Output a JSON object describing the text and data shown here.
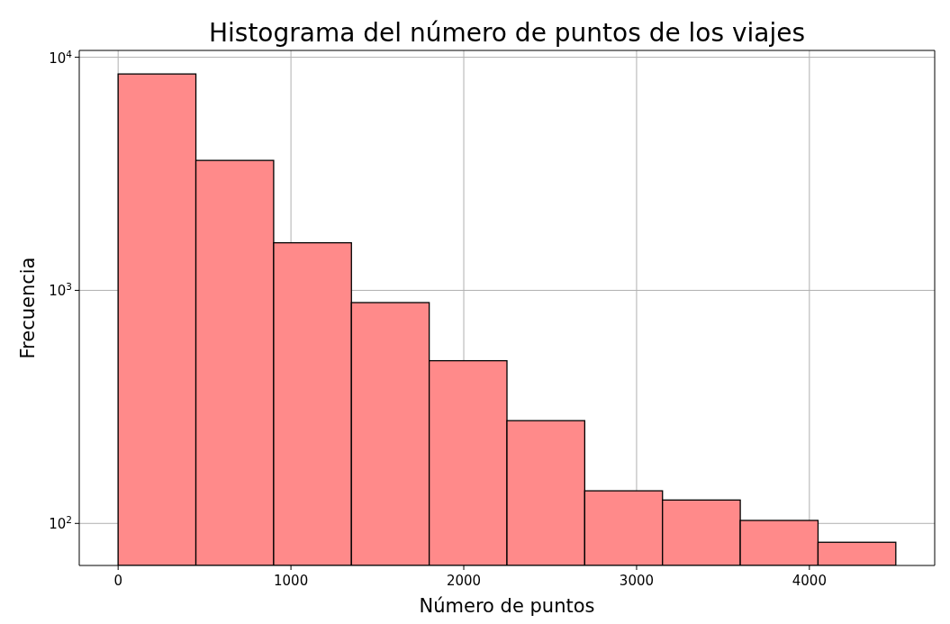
{
  "chart_data": {
    "type": "histogram",
    "title": "Histograma del número de puntos de los viajes",
    "xlabel": "Número de puntos",
    "ylabel": "Frecuencia",
    "bins": [
      0,
      450,
      900,
      1350,
      1800,
      2250,
      2700,
      3150,
      3600,
      4050,
      4500
    ],
    "values": [
      8480,
      3610,
      1600,
      886,
      499,
      276,
      138,
      126,
      103,
      83
    ],
    "color": "#ff8a8a",
    "log": "y",
    "grid": true,
    "xlim": [
      -225,
      4725
    ],
    "xticks": [
      0,
      1000,
      2000,
      3000,
      4000
    ],
    "ylim": [
      66,
      10700
    ],
    "yticks": [
      {
        "value": 100,
        "label": "10$^{2}$"
      },
      {
        "value": 1000,
        "label": "10$^{3}$"
      },
      {
        "value": 10000,
        "label": "10$^{4}$"
      }
    ]
  }
}
